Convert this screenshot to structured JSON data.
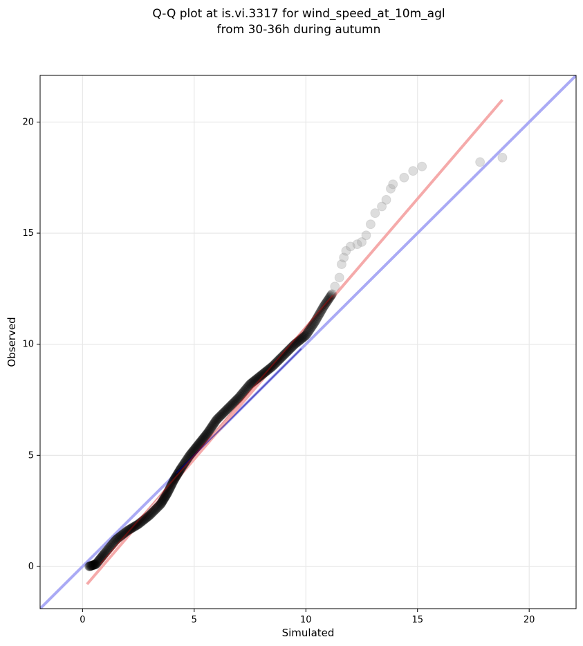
{
  "chart_data": {
    "type": "scatter",
    "title_lines": [
      "Q-Q plot at is.vi.3317 for wind_speed_at_10m_agl",
      "from 30-36h during autumn"
    ],
    "xlabel": "Simulated",
    "ylabel": "Observed",
    "xlim": [
      -1.9,
      22.1
    ],
    "ylim": [
      -1.9,
      22.1
    ],
    "xticks": [
      0,
      5,
      10,
      15,
      20
    ],
    "yticks": [
      0,
      5,
      10,
      15,
      20
    ],
    "grid": true,
    "colors": {
      "points_dense": "#000000",
      "points_sparse": "#aaaaaa",
      "identity_line": "#aaaaf5",
      "fit_line": "#f5aaaa",
      "fit_line_core": "#cc0000",
      "identity_core": "#000099"
    },
    "reference_lines": [
      {
        "name": "identity",
        "x": [
          -1.9,
          22.1
        ],
        "y": [
          -1.9,
          22.1
        ]
      },
      {
        "name": "fit",
        "x": [
          0.2,
          18.8
        ],
        "y": [
          -0.8,
          21.0
        ]
      }
    ],
    "quantile_curve": {
      "x": [
        0.3,
        0.6,
        1.0,
        1.5,
        2.0,
        2.5,
        3.0,
        3.5,
        3.8,
        4.1,
        4.4,
        4.8,
        5.2,
        5.6,
        6.0,
        6.5,
        7.0,
        7.5,
        8.0,
        8.5,
        9.0,
        9.5,
        10.0,
        10.4,
        10.8,
        11.2
      ],
      "y": [
        0.0,
        0.1,
        0.6,
        1.2,
        1.6,
        1.9,
        2.3,
        2.8,
        3.3,
        3.9,
        4.4,
        5.0,
        5.5,
        6.0,
        6.6,
        7.1,
        7.6,
        8.2,
        8.6,
        9.0,
        9.5,
        10.0,
        10.4,
        11.0,
        11.7,
        12.3
      ]
    },
    "sparse_points": {
      "x": [
        11.3,
        11.5,
        11.6,
        11.7,
        11.8,
        12.0,
        12.3,
        12.5,
        12.7,
        12.9,
        13.1,
        13.4,
        13.6,
        13.8,
        13.9,
        14.4,
        14.8,
        15.2,
        17.8,
        18.8
      ],
      "y": [
        12.6,
        13.0,
        13.6,
        13.9,
        14.2,
        14.4,
        14.5,
        14.6,
        14.9,
        15.4,
        15.9,
        16.2,
        16.5,
        17.0,
        17.2,
        17.5,
        17.8,
        18.0,
        18.2,
        18.4
      ]
    }
  }
}
